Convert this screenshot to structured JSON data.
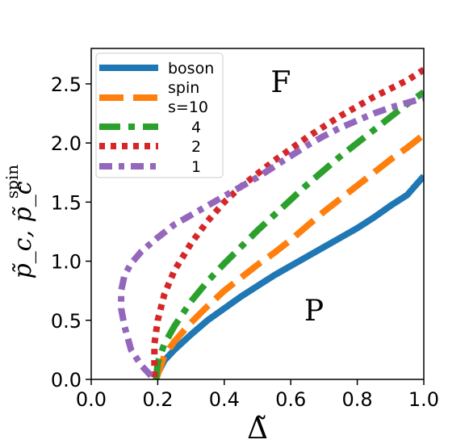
{
  "chart_data": {
    "type": "line",
    "xlabel": "Δ̃",
    "ylabel_main": "p̃_c, p̃_c",
    "ylabel_sup": "spin",
    "xlim": [
      0.0,
      1.0
    ],
    "ylim": [
      0.0,
      2.8
    ],
    "xticks": [
      0.0,
      0.2,
      0.4,
      0.6,
      0.8,
      1.0
    ],
    "xtick_labels": [
      "0.0",
      "0.2",
      "0.4",
      "0.6",
      "0.8",
      "1.0"
    ],
    "yticks": [
      0.0,
      0.5,
      1.0,
      1.5,
      2.0,
      2.5
    ],
    "ytick_labels": [
      "0.0",
      "0.5",
      "1.0",
      "1.5",
      "2.0",
      "2.5"
    ],
    "grid": false,
    "legend_position": "top-left",
    "annotations": [
      {
        "text": "F",
        "x": 0.57,
        "y": 2.43
      },
      {
        "text": "P",
        "x": 0.67,
        "y": 0.5
      }
    ],
    "legend_entries": [
      "boson",
      "spin",
      "s=10",
      "4",
      "2",
      "1"
    ],
    "series": [
      {
        "name": "boson",
        "color": "#1f77b4",
        "dash": "solid",
        "x": [
          0.195,
          0.2,
          0.22,
          0.25,
          0.3,
          0.35,
          0.4,
          0.45,
          0.5,
          0.55,
          0.6,
          0.65,
          0.7,
          0.75,
          0.8,
          0.85,
          0.9,
          0.95,
          1.0
        ],
        "y": [
          0.0,
          0.05,
          0.16,
          0.25,
          0.38,
          0.5,
          0.6,
          0.7,
          0.79,
          0.88,
          0.96,
          1.04,
          1.12,
          1.2,
          1.28,
          1.37,
          1.47,
          1.56,
          1.72
        ]
      },
      {
        "name": "s=10",
        "color": "#ff7f0e",
        "dash": "long",
        "x": [
          0.195,
          0.22,
          0.25,
          0.3,
          0.35,
          0.4,
          0.45,
          0.5,
          0.55,
          0.6,
          0.65,
          0.7,
          0.75,
          0.8,
          0.85,
          0.9,
          0.95,
          1.0
        ],
        "y": [
          0.0,
          0.2,
          0.32,
          0.48,
          0.62,
          0.75,
          0.86,
          0.97,
          1.07,
          1.18,
          1.3,
          1.42,
          1.53,
          1.64,
          1.75,
          1.86,
          1.96,
          2.07
        ]
      },
      {
        "name": "4",
        "color": "#2ca02c",
        "dash": "dashdot",
        "x": [
          0.195,
          0.2,
          0.22,
          0.25,
          0.3,
          0.35,
          0.4,
          0.45,
          0.5,
          0.55,
          0.6,
          0.65,
          0.7,
          0.75,
          0.8,
          0.85,
          0.9,
          0.95,
          1.0
        ],
        "y": [
          0.0,
          0.14,
          0.3,
          0.45,
          0.66,
          0.83,
          0.98,
          1.12,
          1.26,
          1.39,
          1.52,
          1.65,
          1.77,
          1.89,
          2.0,
          2.11,
          2.22,
          2.33,
          2.43
        ]
      },
      {
        "name": "2",
        "color": "#d62728",
        "dash": "dotted",
        "x": [
          0.19,
          0.19,
          0.2,
          0.22,
          0.25,
          0.3,
          0.35,
          0.4,
          0.45,
          0.5,
          0.55,
          0.6,
          0.65,
          0.7,
          0.75,
          0.8,
          0.85,
          0.9,
          0.95,
          1.0
        ],
        "y": [
          0.02,
          0.3,
          0.5,
          0.72,
          0.92,
          1.15,
          1.34,
          1.5,
          1.63,
          1.74,
          1.85,
          1.95,
          2.05,
          2.14,
          2.23,
          2.31,
          2.39,
          2.46,
          2.53,
          2.62
        ]
      },
      {
        "name": "1",
        "color": "#9467bd",
        "dash": "dashdot-short",
        "x": [
          0.18,
          0.15,
          0.12,
          0.1,
          0.09,
          0.09,
          0.1,
          0.12,
          0.15,
          0.2,
          0.25,
          0.3,
          0.35,
          0.4,
          0.45,
          0.5,
          0.55,
          0.6,
          0.65,
          0.7,
          0.75,
          0.8,
          0.85,
          0.9,
          0.95,
          1.0
        ],
        "y": [
          0.03,
          0.12,
          0.25,
          0.45,
          0.6,
          0.75,
          0.88,
          0.98,
          1.08,
          1.2,
          1.31,
          1.39,
          1.47,
          1.55,
          1.63,
          1.71,
          1.8,
          1.89,
          1.98,
          2.06,
          2.13,
          2.19,
          2.25,
          2.3,
          2.34,
          2.38
        ]
      }
    ]
  }
}
